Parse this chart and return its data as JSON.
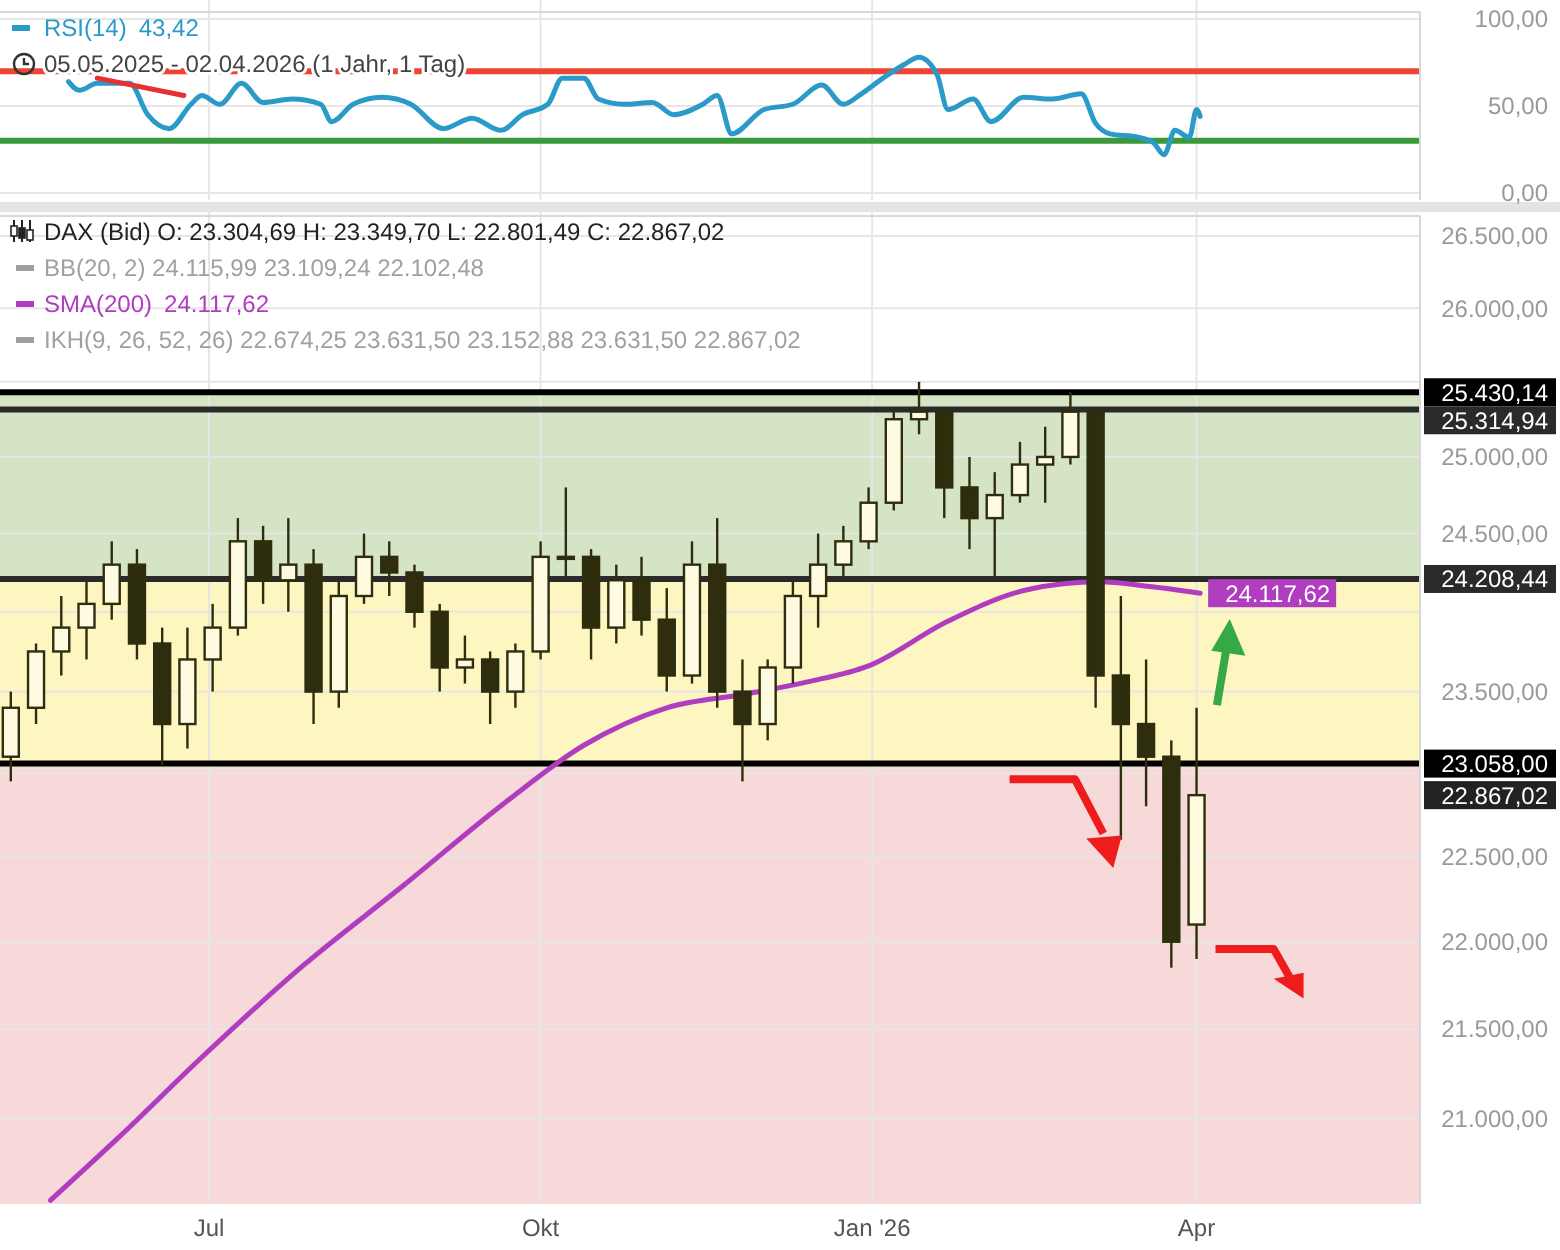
{
  "chart_data": [
    {
      "type": "line",
      "xlim": [
        "2025-05-04",
        "2026-06-02"
      ],
      "ylim": [
        -4,
        104
      ],
      "xticks": [
        {
          "value": "2025-07-01",
          "label": null
        },
        {
          "value": "2025-10-01",
          "label": null
        },
        {
          "value": "2026-01-01",
          "label": null
        },
        {
          "value": "2026-04-01",
          "label": null
        }
      ],
      "yticks": [
        {
          "value": 0,
          "label": "0,00"
        },
        {
          "value": 50,
          "label": "50,00"
        },
        {
          "value": 100,
          "label": "100,00"
        }
      ],
      "tick_labels": "y",
      "grid": true,
      "legend": "top left",
      "annotations": [
        "43,42",
        "05.05.2025 - 02.04.2026   (1 Jahr, 1 Tag)"
      ],
      "ref_lines": [
        {
          "axis": "y",
          "value": 70,
          "color": "#ee4433"
        },
        {
          "axis": "y",
          "value": 30,
          "color": "#3a9a3a"
        }
      ],
      "series": [
        {
          "name": "RSI(14)",
          "color": "#2a9ac8",
          "x": [
            "2025-05-23",
            "2025-05-26",
            "2025-05-31",
            "2025-06-09",
            "2025-06-14",
            "2025-06-20",
            "2025-06-26",
            "2025-06-29",
            "2025-07-04",
            "2025-07-10",
            "2025-07-16",
            "2025-07-24",
            "2025-08-01",
            "2025-08-04",
            "2025-08-10",
            "2025-08-18",
            "2025-08-26",
            "2025-09-04",
            "2025-09-12",
            "2025-09-20",
            "2025-09-26",
            "2025-10-03",
            "2025-10-07",
            "2025-10-13",
            "2025-10-17",
            "2025-10-24",
            "2025-11-01",
            "2025-11-07",
            "2025-11-15",
            "2025-11-19",
            "2025-11-23",
            "2025-12-02",
            "2025-12-10",
            "2025-12-18",
            "2025-12-24",
            "2025-12-29",
            "2026-01-04",
            "2026-01-10",
            "2026-01-14",
            "2026-01-19",
            "2026-01-22",
            "2026-01-29",
            "2026-02-03",
            "2026-02-12",
            "2026-02-20",
            "2026-02-28",
            "2026-03-04",
            "2026-03-08",
            "2026-03-16",
            "2026-03-20",
            "2026-03-23",
            "2026-03-26",
            "2026-03-30",
            "2026-04-01",
            "2026-04-02"
          ],
          "values": [
            64,
            59,
            63,
            63,
            45,
            37,
            51,
            56,
            51,
            63,
            52,
            54,
            51,
            41,
            51,
            55,
            51,
            37,
            43,
            36,
            45,
            51,
            66,
            66,
            54,
            51,
            52,
            45,
            51,
            56,
            34,
            48,
            51,
            62,
            51,
            57,
            66,
            74,
            78,
            68,
            48,
            54,
            41,
            55,
            54,
            57,
            40,
            34,
            32,
            29,
            22,
            36,
            32,
            48,
            44
          ]
        },
        {
          "type": "line",
          "color": "#e83030",
          "x": [
            "2025-05-31",
            "2025-06-24"
          ],
          "values": [
            66,
            56
          ]
        }
      ]
    },
    {
      "type": "candlestick",
      "log": "y",
      "xlim": [
        "2025-05-04",
        "2026-06-02"
      ],
      "ylim": [
        20530,
        26640
      ],
      "xticks": [
        {
          "value": "2025-07-01",
          "label": "Jul"
        },
        {
          "value": "2025-10-01",
          "label": "Okt"
        },
        {
          "value": "2026-01-01",
          "label": "Jan '26"
        },
        {
          "value": "2026-04-01",
          "label": "Apr"
        }
      ],
      "yticks": [
        {
          "value": 21000,
          "label": "21.000,00"
        },
        {
          "value": 21500,
          "label": "21.500,00"
        },
        {
          "value": 22000,
          "label": "22.000,00"
        },
        {
          "value": 22500,
          "label": "22.500,00"
        },
        {
          "value": 23000,
          "label": null
        },
        {
          "value": 23500,
          "label": "23.500,00"
        },
        {
          "value": 24000,
          "label": null
        },
        {
          "value": 24500,
          "label": "24.500,00"
        },
        {
          "value": 25000,
          "label": "25.000,00"
        },
        {
          "value": 25500,
          "label": null
        },
        {
          "value": 26000,
          "label": "26.000,00"
        },
        {
          "value": 26500,
          "label": "26.500,00"
        }
      ],
      "grid": true,
      "legend": "top left",
      "annotations": [
        "DAX (Bid)  O: 23.304,69  H: 23.349,70  L: 22.801,49  C: 22.867,02",
        "BB(20, 2)  24.115,99  23.109,24  22.102,48",
        "24.117,62",
        "IKH(9, 26, 52, 26)  22.674,25  23.631,50  23.152,88  23.631,50  22.867,02"
      ],
      "bands": [
        {
          "axis": "y",
          "from": 23058,
          "to": 25430.14,
          "color": "#fdf6c0"
        },
        {
          "axis": "y",
          "from": 24208.44,
          "to": 25430.14,
          "color": "#d4e4c4"
        },
        {
          "axis": "y",
          "from": 20530,
          "to": 23058,
          "color": "#f7d9d9"
        }
      ],
      "ref_lines": [
        {
          "axis": "y",
          "value": 25430.14,
          "label": "25.430,14",
          "color": "#000000"
        },
        {
          "axis": "y",
          "value": 25314.94,
          "label": "25.314,94",
          "color": "#2a2a2a"
        },
        {
          "axis": "y",
          "value": 24208.44,
          "label": "24.208,44",
          "color": "#2a2a2a"
        },
        {
          "axis": "y",
          "value": 23058,
          "label": "23.058,00",
          "color": "#000000"
        }
      ],
      "series": [
        {
          "color": "#2e2e0e",
          "value_labels": [
            null,
            null,
            null,
            null,
            null,
            null,
            null,
            null,
            null,
            null,
            null,
            null,
            null,
            null,
            null,
            null,
            null,
            null,
            null,
            null,
            null,
            null,
            null,
            null,
            null,
            null,
            null,
            null,
            null,
            null,
            null,
            null,
            null,
            null,
            null,
            null,
            null,
            null,
            null,
            null,
            null,
            null,
            null,
            null,
            null,
            null,
            null,
            "22.867,02"
          ],
          "x": [
            "2025-05-07",
            "2025-05-14",
            "2025-05-21",
            "2025-05-28",
            "2025-06-04",
            "2025-06-11",
            "2025-06-18",
            "2025-06-25",
            "2025-07-02",
            "2025-07-09",
            "2025-07-16",
            "2025-07-23",
            "2025-07-30",
            "2025-08-06",
            "2025-08-13",
            "2025-08-20",
            "2025-08-27",
            "2025-09-03",
            "2025-09-10",
            "2025-09-17",
            "2025-09-24",
            "2025-10-01",
            "2025-10-08",
            "2025-10-15",
            "2025-10-22",
            "2025-10-29",
            "2025-11-05",
            "2025-11-12",
            "2025-11-19",
            "2025-11-26",
            "2025-12-03",
            "2025-12-10",
            "2025-12-17",
            "2025-12-24",
            "2025-12-31",
            "2026-01-07",
            "2026-01-14",
            "2026-01-21",
            "2026-01-28",
            "2026-02-04",
            "2026-02-11",
            "2026-02-18",
            "2026-02-25",
            "2026-03-04",
            "2026-03-11",
            "2026-03-18",
            "2026-03-25",
            "2026-04-01"
          ],
          "ohlc": [
            [
              23100,
              23500,
              22950,
              23400
            ],
            [
              23400,
              23800,
              23300,
              23750
            ],
            [
              23750,
              24100,
              23600,
              23900
            ],
            [
              23900,
              24200,
              23700,
              24050
            ],
            [
              24050,
              24450,
              23950,
              24300
            ],
            [
              24300,
              24400,
              23700,
              23800
            ],
            [
              23800,
              23900,
              23050,
              23300
            ],
            [
              23300,
              23900,
              23150,
              23700
            ],
            [
              23700,
              24050,
              23500,
              23900
            ],
            [
              23900,
              24600,
              23850,
              24450
            ],
            [
              24450,
              24550,
              24050,
              24200
            ],
            [
              24200,
              24600,
              24000,
              24300
            ],
            [
              24300,
              24400,
              23300,
              23500
            ],
            [
              23500,
              24200,
              23400,
              24100
            ],
            [
              24100,
              24500,
              24050,
              24350
            ],
            [
              24350,
              24450,
              24100,
              24250
            ],
            [
              24250,
              24300,
              23900,
              24000
            ],
            [
              24000,
              24050,
              23500,
              23650
            ],
            [
              23650,
              23850,
              23550,
              23700
            ],
            [
              23700,
              23750,
              23300,
              23500
            ],
            [
              23500,
              23800,
              23400,
              23750
            ],
            [
              23750,
              24450,
              23700,
              24350
            ],
            [
              24350,
              24800,
              24200,
              24350
            ],
            [
              24350,
              24400,
              23700,
              23900
            ],
            [
              23900,
              24300,
              23800,
              24200
            ],
            [
              24200,
              24350,
              23850,
              23950
            ],
            [
              23950,
              24150,
              23500,
              23600
            ],
            [
              23600,
              24450,
              23550,
              24300
            ],
            [
              24300,
              24600,
              23400,
              23500
            ],
            [
              23500,
              23700,
              22950,
              23300
            ],
            [
              23300,
              23700,
              23200,
              23650
            ],
            [
              23650,
              24200,
              23550,
              24100
            ],
            [
              24100,
              24500,
              23900,
              24300
            ],
            [
              24300,
              24550,
              24200,
              24450
            ],
            [
              24450,
              24800,
              24400,
              24700
            ],
            [
              24700,
              25300,
              24650,
              25250
            ],
            [
              25250,
              25500,
              25150,
              25300
            ],
            [
              25300,
              25320,
              24600,
              24800
            ],
            [
              24800,
              25000,
              24400,
              24600
            ],
            [
              24600,
              24900,
              24200,
              24750
            ],
            [
              24750,
              25100,
              24700,
              24950
            ],
            [
              24950,
              25200,
              24700,
              25000
            ],
            [
              25000,
              25430,
              24950,
              25300
            ],
            [
              25300,
              25320,
              23400,
              23600
            ],
            [
              23600,
              24100,
              22600,
              23300
            ],
            [
              23300,
              23700,
              22800,
              23100
            ],
            [
              23100,
              23200,
              21850,
              22000
            ],
            [
              22100,
              23400,
              21900,
              22867.02
            ]
          ]
        },
        {
          "type": "line",
          "name": "SMA(200)",
          "color": "#b03cc0",
          "x": [
            "2025-05-18",
            "2025-06-06",
            "2025-06-29",
            "2025-07-27",
            "2025-08-24",
            "2025-09-21",
            "2025-10-13",
            "2025-11-05",
            "2025-11-27",
            "2025-12-14",
            "2025-12-31",
            "2026-01-22",
            "2026-02-13",
            "2026-03-05",
            "2026-03-19",
            "2026-04-02"
          ],
          "values": [
            20550,
            20895,
            21340,
            21860,
            22330,
            22820,
            23170,
            23400,
            23485,
            23560,
            23660,
            23940,
            24140,
            24190,
            24160,
            24117.62
          ],
          "value_labels": [
            null,
            null,
            null,
            null,
            null,
            null,
            null,
            null,
            null,
            null,
            null,
            null,
            null,
            null,
            null,
            "24.117,62"
          ]
        }
      ]
    }
  ]
}
